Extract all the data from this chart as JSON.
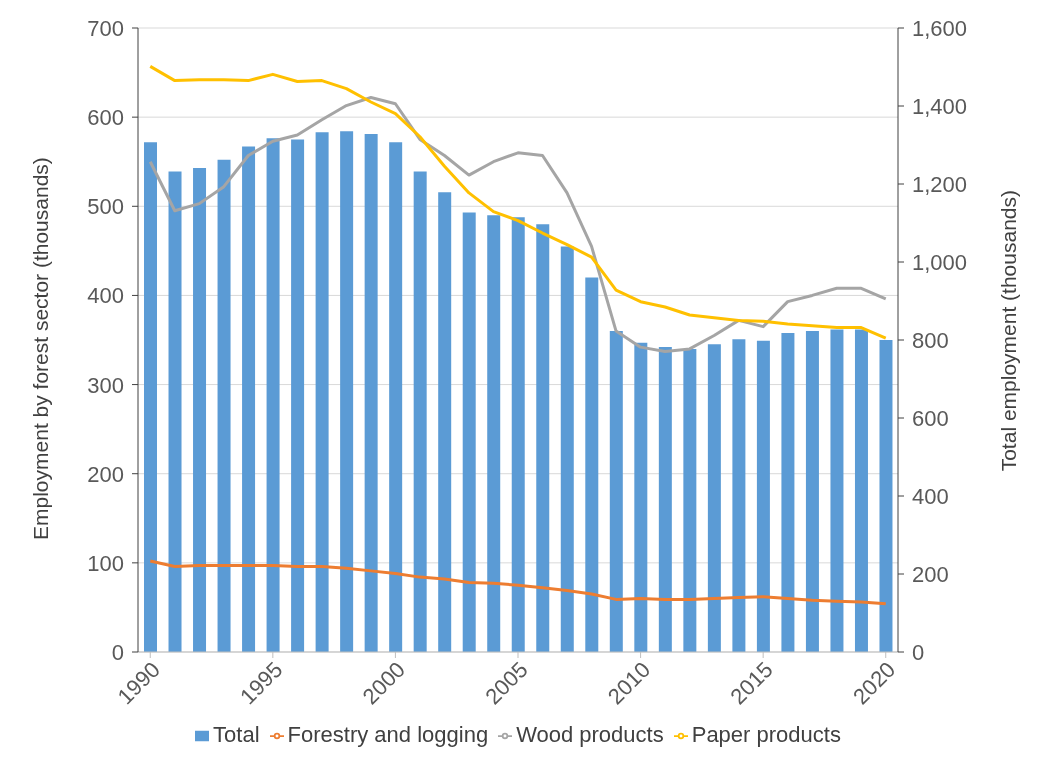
{
  "chart_data": {
    "type": "bar",
    "xlabel": null,
    "ylabel": "Employment by forest sector (thousands)",
    "y2label": "Total employment (thousands)",
    "x": [
      1990,
      1991,
      1992,
      1993,
      1994,
      1995,
      1996,
      1997,
      1998,
      1999,
      2000,
      2001,
      2002,
      2003,
      2004,
      2005,
      2006,
      2007,
      2008,
      2009,
      2010,
      2011,
      2012,
      2013,
      2014,
      2015,
      2016,
      2017,
      2018,
      2019,
      2020
    ],
    "xlim": [
      1989.5,
      2020.5
    ],
    "xticks": [
      1990,
      1995,
      2000,
      2005,
      2010,
      2015,
      2020
    ],
    "ylim": [
      0,
      700
    ],
    "yticks": [
      0,
      100,
      200,
      300,
      400,
      500,
      600,
      700
    ],
    "y2lim": [
      0,
      1600
    ],
    "y2ticks": [
      {
        "value": 0,
        "label": "0"
      },
      {
        "value": 200,
        "label": "200"
      },
      {
        "value": 400,
        "label": "400"
      },
      {
        "value": 600,
        "label": "600"
      },
      {
        "value": 800,
        "label": "800"
      },
      {
        "value": 1000,
        "label": "1,000"
      },
      {
        "value": 1200,
        "label": "1,200"
      },
      {
        "value": 1400,
        "label": "1,400"
      },
      {
        "value": 1600,
        "label": "1,600"
      }
    ],
    "grid": "y",
    "legend": "bottom",
    "series": [
      {
        "name": "Total",
        "axis": "y2",
        "color": "#5b9bd5",
        "values": [
          1307,
          1232,
          1241,
          1262,
          1296,
          1317,
          1314,
          1333,
          1335,
          1328,
          1307,
          1232,
          1179,
          1127,
          1120,
          1115,
          1097,
          1040,
          960,
          823,
          793,
          782,
          777,
          789,
          802,
          798,
          818,
          823,
          827,
          827,
          800
        ]
      },
      {
        "name": "Forestry and logging",
        "type": "line",
        "color": "#ed7d31",
        "values": [
          102,
          96,
          97,
          97,
          97,
          97,
          96,
          96,
          94,
          91,
          88,
          84,
          82,
          78,
          77,
          75,
          72,
          69,
          65,
          59,
          60,
          59,
          59,
          60,
          61,
          62,
          60,
          58,
          57,
          56,
          54
        ]
      },
      {
        "name": "Wood products",
        "type": "line",
        "color": "#a5a5a5",
        "values": [
          550,
          495,
          503,
          522,
          557,
          573,
          580,
          597,
          613,
          622,
          615,
          575,
          557,
          535,
          550,
          560,
          557,
          515,
          455,
          360,
          342,
          337,
          340,
          355,
          372,
          365,
          393,
          400,
          408,
          408,
          396
        ]
      },
      {
        "name": "Paper products",
        "type": "line",
        "color": "#ffc000",
        "values": [
          657,
          641,
          642,
          642,
          641,
          648,
          640,
          641,
          632,
          617,
          604,
          578,
          545,
          515,
          494,
          484,
          470,
          457,
          443,
          406,
          393,
          387,
          378,
          375,
          372,
          371,
          368,
          366,
          364,
          364,
          352
        ]
      }
    ]
  }
}
